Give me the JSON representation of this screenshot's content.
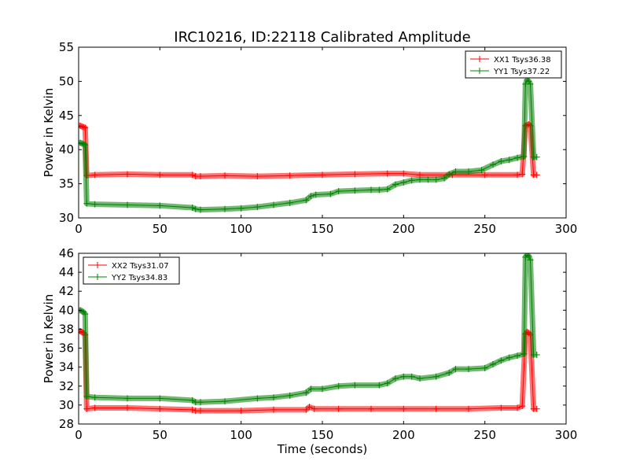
{
  "figure": {
    "title": "IRC10216, ID:22118 Calibrated Amplitude"
  },
  "chart_data": [
    {
      "type": "line",
      "ylabel": "Power in Kelvin",
      "xlabel": "",
      "xlim": [
        0,
        300
      ],
      "ylim": [
        30,
        55
      ],
      "xticks": [
        0,
        50,
        100,
        150,
        200,
        250,
        300
      ],
      "yticks": [
        30,
        35,
        40,
        45,
        50,
        55
      ],
      "legend_position": "top-right",
      "grid": false,
      "series": [
        {
          "name": "XX1 Tsys36.38",
          "color": "#ff0000",
          "x": [
            0,
            1,
            2,
            3,
            4,
            5,
            10,
            30,
            50,
            70,
            72,
            75,
            90,
            110,
            130,
            150,
            170,
            190,
            200,
            210,
            230,
            250,
            270,
            273,
            275,
            276,
            277,
            278,
            280,
            282
          ],
          "y": [
            43.3,
            43.5,
            43.4,
            43.3,
            43.2,
            36.2,
            36.3,
            36.4,
            36.3,
            36.3,
            36.1,
            36.1,
            36.2,
            36.1,
            36.2,
            36.3,
            36.4,
            36.5,
            36.5,
            36.3,
            36.3,
            36.3,
            36.3,
            36.4,
            43.5,
            43.6,
            43.7,
            43.5,
            36.3,
            36.3
          ]
        },
        {
          "name": "YY1 Tsys37.22",
          "color": "#008000",
          "x": [
            0,
            1,
            2,
            3,
            4,
            5,
            10,
            30,
            50,
            70,
            72,
            75,
            90,
            100,
            110,
            120,
            130,
            140,
            143,
            146,
            155,
            160,
            170,
            180,
            185,
            190,
            195,
            200,
            205,
            210,
            215,
            220,
            225,
            228,
            232,
            240,
            248,
            255,
            260,
            265,
            270,
            274,
            275,
            276,
            277,
            278,
            280,
            282
          ],
          "y": [
            40.9,
            41,
            40.9,
            40.8,
            40.7,
            32.1,
            32,
            31.9,
            31.8,
            31.5,
            31.3,
            31.2,
            31.3,
            31.4,
            31.6,
            31.9,
            32.2,
            32.6,
            33.2,
            33.4,
            33.5,
            33.9,
            34.0,
            34.1,
            34.1,
            34.2,
            34.9,
            35.2,
            35.5,
            35.6,
            35.6,
            35.6,
            35.8,
            36.4,
            36.8,
            36.8,
            37.0,
            37.8,
            38.3,
            38.5,
            38.8,
            39.0,
            49.6,
            50.2,
            50.0,
            49.6,
            38.9,
            38.9
          ]
        }
      ]
    },
    {
      "type": "line",
      "ylabel": "Power in Kelvin",
      "xlabel": "Time (seconds)",
      "xlim": [
        0,
        300
      ],
      "ylim": [
        28,
        46
      ],
      "xticks": [
        0,
        50,
        100,
        150,
        200,
        250,
        300
      ],
      "yticks": [
        28,
        30,
        32,
        34,
        36,
        38,
        40,
        42,
        44,
        46
      ],
      "legend_position": "top-left",
      "grid": false,
      "series": [
        {
          "name": "XX2 Tsys31.07",
          "color": "#ff0000",
          "x": [
            0,
            1,
            2,
            3,
            4,
            5,
            10,
            30,
            50,
            70,
            72,
            75,
            100,
            120,
            140,
            142,
            145,
            160,
            180,
            200,
            220,
            240,
            260,
            270,
            273,
            275,
            276,
            277,
            278,
            280,
            282
          ],
          "y": [
            37.6,
            37.8,
            37.7,
            37.6,
            37.4,
            29.6,
            29.7,
            29.7,
            29.6,
            29.5,
            29.4,
            29.4,
            29.4,
            29.5,
            29.5,
            29.8,
            29.6,
            29.6,
            29.6,
            29.6,
            29.6,
            29.6,
            29.7,
            29.7,
            29.9,
            37.5,
            37.7,
            37.6,
            37.4,
            29.6,
            29.6
          ]
        },
        {
          "name": "YY2 Tsys34.83",
          "color": "#008000",
          "x": [
            0,
            1,
            2,
            3,
            4,
            5,
            10,
            30,
            50,
            70,
            72,
            75,
            90,
            110,
            120,
            130,
            140,
            143,
            150,
            160,
            170,
            185,
            190,
            195,
            200,
            205,
            210,
            220,
            228,
            232,
            240,
            250,
            255,
            260,
            265,
            270,
            274,
            275,
            276,
            277,
            278,
            280,
            282
          ],
          "y": [
            39.9,
            40,
            39.9,
            39.8,
            39.6,
            30.9,
            30.8,
            30.7,
            30.7,
            30.5,
            30.3,
            30.3,
            30.4,
            30.7,
            30.8,
            31.0,
            31.3,
            31.7,
            31.7,
            32.0,
            32.1,
            32.1,
            32.3,
            32.8,
            33.0,
            33.0,
            32.8,
            33.0,
            33.4,
            33.8,
            33.8,
            33.9,
            34.3,
            34.7,
            35.0,
            35.2,
            35.4,
            45.6,
            45.8,
            45.7,
            45.3,
            35.3,
            35.3
          ]
        }
      ]
    }
  ]
}
